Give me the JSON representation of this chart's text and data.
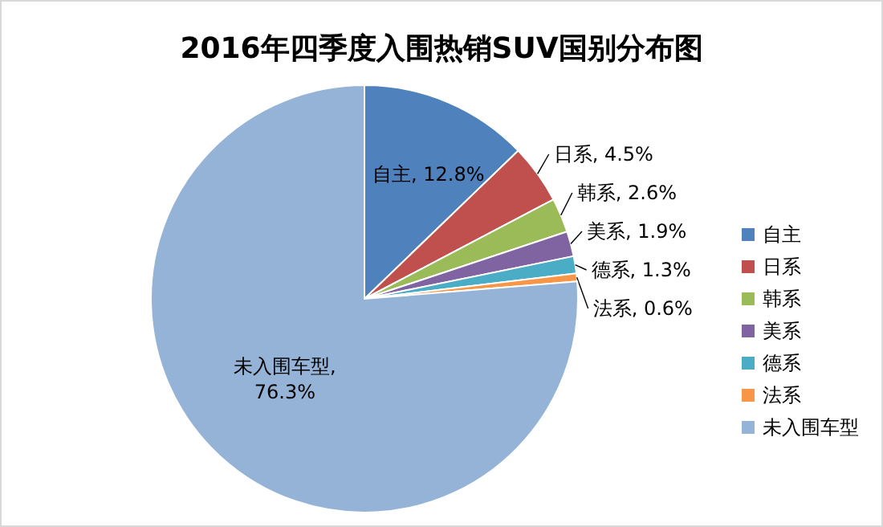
{
  "chart_data": {
    "type": "pie",
    "title": "2016年四季度入围热销SUV国别分布图",
    "categories": [
      "自主",
      "日系",
      "韩系",
      "美系",
      "德系",
      "法系",
      "未入围车型"
    ],
    "values": [
      12.8,
      4.5,
      2.6,
      1.9,
      1.3,
      0.6,
      76.3
    ],
    "colors": [
      "#4f81bd",
      "#c0504d",
      "#9bbb59",
      "#8064a2",
      "#4bacc6",
      "#f79646",
      "#95b3d7"
    ],
    "value_labels": [
      "自主, 12.8%",
      "日系, 4.5%",
      "韩系, 2.6%",
      "美系, 1.9%",
      "德系, 1.3%",
      "法系, 0.6%",
      "未入围车型, 76.3%"
    ],
    "legend": "right"
  }
}
